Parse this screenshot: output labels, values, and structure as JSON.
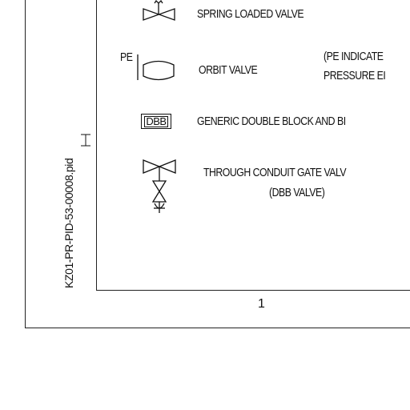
{
  "sheet": {
    "drawing_id": "KZ01-PR-PID-53-00008.pid",
    "zone_number": "1"
  },
  "legend": {
    "spring_loaded_valve": "SPRING LOADED VALVE",
    "pe_tag": "PE",
    "orbit_valve": "ORBIT VALVE",
    "pe_note_line1": "(PE INDICATE",
    "pe_note_line2": "PRESSURE EI",
    "dbb_symbol": "DBB",
    "dbb_generic": "GENERIC DOUBLE BLOCK AND BI",
    "gate_valve_line1": "THROUGH CONDUIT GATE VALV",
    "gate_valve_line2": "(DBB VALVE)"
  }
}
